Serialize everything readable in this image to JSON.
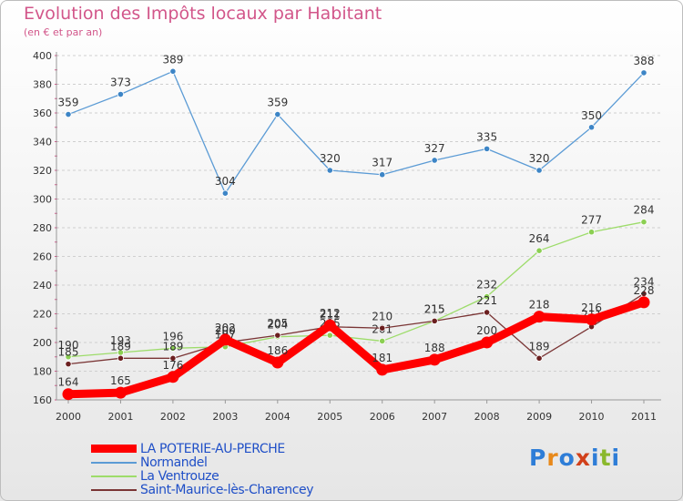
{
  "header": {
    "title": "Evolution des Impôts locaux par Habitant",
    "subtitle": "(en € et par an)"
  },
  "logo": {
    "text": "Proxiti",
    "letters": [
      "P",
      "r",
      "o",
      "x",
      "i",
      "t",
      "i"
    ],
    "colors": [
      "#2e7dd7",
      "#e8891a",
      "#2e7dd7",
      "#d1401a",
      "#2e7dd7",
      "#8ab82c",
      "#2e7dd7"
    ]
  },
  "chart_data": {
    "type": "line",
    "title": "Evolution des Impôts locaux par Habitant",
    "subtitle": "(en € et par an)",
    "xlabel": "",
    "ylabel": "",
    "x": [
      2000,
      2001,
      2002,
      2003,
      2004,
      2005,
      2006,
      2007,
      2008,
      2009,
      2010,
      2011
    ],
    "x_tick_labels": [
      "2000",
      "2001",
      "2002",
      "2003",
      "2004",
      "2005",
      "2006",
      "2007",
      "2008",
      "2009",
      "2010",
      "2011"
    ],
    "ylim": [
      160,
      400
    ],
    "y_ticks": [
      160,
      180,
      200,
      220,
      240,
      260,
      280,
      300,
      320,
      340,
      360,
      380,
      400
    ],
    "grid": "horizontal dashed",
    "legend_position": "bottom-left",
    "series": [
      {
        "name": "Normandel",
        "color": "#5b9bd5",
        "marker_fill": "#3d85c6",
        "line_weight": "thin",
        "values": [
          359,
          373,
          389,
          304,
          359,
          320,
          317,
          327,
          335,
          320,
          350,
          388
        ]
      },
      {
        "name": "La Ventrouze",
        "color": "#9ddc6a",
        "marker_fill": "#8bcf52",
        "line_weight": "thin",
        "values": [
          190,
          193,
          196,
          197,
          204,
          205,
          201,
          215,
          232,
          264,
          277,
          284
        ]
      },
      {
        "name": "Saint-Maurice-lès-Charencey",
        "color": "#7a3535",
        "marker_fill": "#6b1f1f",
        "line_weight": "thin",
        "values": [
          185,
          189,
          189,
          200,
          205,
          211,
          210,
          215,
          221,
          189,
          211,
          234
        ]
      },
      {
        "name": "LA POTERIE-AU-PERCHE",
        "color": "#ff0000",
        "marker_fill": "#ff0000",
        "line_weight": "bold",
        "values": [
          164,
          165,
          176,
          202,
          186,
          212,
          181,
          188,
          200,
          218,
          216,
          228
        ]
      }
    ],
    "legend_order": [
      "LA POTERIE-AU-PERCHE",
      "Normandel",
      "La Ventrouze",
      "Saint-Maurice-lès-Charencey"
    ]
  }
}
